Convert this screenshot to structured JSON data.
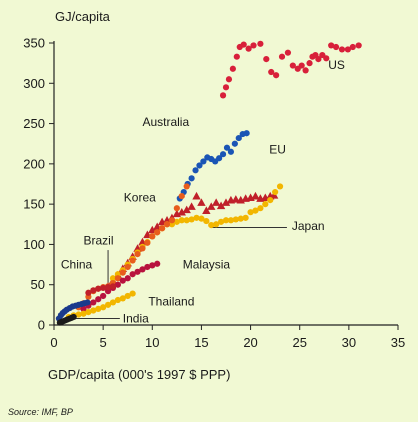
{
  "chart_data": {
    "type": "scatter",
    "ylabel": "GJ/capita",
    "xlabel": "GDP/capita (000's 1997 $ PPP)",
    "source": "Source: IMF, BP",
    "xlim": [
      0,
      35
    ],
    "ylim": [
      0,
      350
    ],
    "xticks": [
      0,
      5,
      10,
      15,
      20,
      25,
      30,
      35
    ],
    "yticks": [
      0,
      50,
      100,
      150,
      200,
      250,
      300,
      350
    ],
    "grid": false,
    "series": [
      {
        "name": "US",
        "color": "#d8203a",
        "marker": "circle",
        "x": [
          17.2,
          17.5,
          17.8,
          18.2,
          18.6,
          18.9,
          19.3,
          19.8,
          20.3,
          21.0,
          21.6,
          22.1,
          22.6,
          23.2,
          23.8,
          24.3,
          24.8,
          25.2,
          25.6,
          26.0,
          26.3,
          26.6,
          26.9,
          27.3,
          27.7,
          28.2,
          28.7,
          29.3,
          29.9,
          30.4,
          31.0
        ],
        "y": [
          285,
          295,
          305,
          318,
          333,
          345,
          348,
          343,
          347,
          349,
          330,
          314,
          310,
          333,
          338,
          322,
          318,
          322,
          316,
          325,
          333,
          335,
          330,
          335,
          331,
          347,
          345,
          342,
          342,
          345,
          347
        ]
      },
      {
        "name": "Australia",
        "color": "#1a55b5",
        "marker": "circle",
        "x": [
          12.8,
          13.2,
          13.6,
          14.0,
          14.4,
          14.8,
          15.2,
          15.6,
          16.0,
          16.4,
          16.8,
          17.2,
          17.6,
          18.0,
          18.4,
          18.8,
          19.2,
          19.6
        ],
        "y": [
          157,
          165,
          175,
          182,
          192,
          198,
          203,
          208,
          206,
          203,
          207,
          212,
          220,
          215,
          225,
          232,
          237,
          238
        ]
      },
      {
        "name": "EU",
        "color": "#c0202a",
        "marker": "triangle",
        "x": [
          5.5,
          6.0,
          6.5,
          7.0,
          7.5,
          8.0,
          8.5,
          9.0,
          9.5,
          10.0,
          10.5,
          11.0,
          11.5,
          12.0,
          12.5,
          13.0,
          13.5,
          14.0,
          14.5,
          15.0,
          15.5,
          16.0,
          16.5,
          17.0,
          17.5,
          18.0,
          18.5,
          19.0,
          19.5,
          20.0,
          20.5,
          21.0,
          21.5,
          22.0,
          22.4
        ],
        "y": [
          48,
          55,
          62,
          70,
          77,
          85,
          95,
          103,
          112,
          118,
          122,
          128,
          130,
          133,
          138,
          140,
          143,
          147,
          160,
          152,
          142,
          147,
          152,
          148,
          152,
          155,
          156,
          155,
          157,
          158,
          160,
          157,
          158,
          160,
          161
        ]
      },
      {
        "name": "Japan",
        "color": "#f2b600",
        "marker": "circle",
        "x": [
          6.0,
          6.5,
          7.0,
          7.5,
          8.0,
          8.5,
          9.0,
          9.5,
          10.0,
          10.5,
          11.0,
          11.5,
          12.0,
          12.5,
          13.0,
          13.5,
          14.0,
          14.5,
          15.0,
          15.5,
          16.0,
          16.5,
          17.0,
          17.5,
          18.0,
          18.5,
          19.0,
          19.5,
          20.0,
          20.5,
          21.0,
          21.5,
          22.0,
          22.5,
          23.0
        ],
        "y": [
          58,
          63,
          68,
          75,
          82,
          90,
          97,
          103,
          110,
          115,
          120,
          125,
          125,
          128,
          130,
          130,
          131,
          133,
          132,
          129,
          124,
          125,
          128,
          130,
          130,
          131,
          132,
          133,
          140,
          142,
          145,
          150,
          155,
          165,
          172
        ]
      },
      {
        "name": "Korea",
        "color": "#e85d1c",
        "marker": "circle",
        "x": [
          2.5,
          3.0,
          3.5,
          4.0,
          4.5,
          5.0,
          5.5,
          6.0,
          6.5,
          7.0,
          7.5,
          8.0,
          8.5,
          9.0,
          9.5,
          10.0,
          10.5,
          11.0,
          11.5,
          12.0,
          12.5,
          13.0,
          13.5
        ],
        "y": [
          22,
          27,
          35,
          42,
          45,
          47,
          48,
          52,
          58,
          65,
          72,
          80,
          88,
          95,
          102,
          110,
          115,
          120,
          125,
          130,
          145,
          160,
          172
        ]
      },
      {
        "name": "Malaysia",
        "color": "#b8123e",
        "marker": "circle",
        "x": [
          3.0,
          3.5,
          4.0,
          4.5,
          5.0,
          5.5,
          6.0,
          6.5,
          7.0,
          7.5,
          8.0,
          8.5,
          9.0,
          9.5,
          10.0,
          10.5
        ],
        "y": [
          20,
          24,
          28,
          32,
          36,
          42,
          46,
          50,
          55,
          58,
          63,
          66,
          69,
          72,
          74,
          76
        ]
      },
      {
        "name": "China",
        "color": "#1a3a8c",
        "marker": "circle",
        "x": [
          0.5,
          0.7,
          0.9,
          1.1,
          1.3,
          1.6,
          1.9,
          2.2,
          2.5,
          2.8,
          3.1,
          3.4
        ],
        "y": [
          8,
          12,
          15,
          17,
          19,
          21,
          23,
          24,
          25,
          26,
          27,
          28
        ]
      },
      {
        "name": "Brazil",
        "color": "#c0202a",
        "marker": "circle",
        "x": [
          3.5,
          4.0,
          4.5,
          5.0,
          5.5,
          6.0
        ],
        "y": [
          40,
          43,
          45,
          46,
          47,
          48
        ]
      },
      {
        "name": "Thailand",
        "color": "#f2b600",
        "marker": "circle",
        "x": [
          1.5,
          2.0,
          2.5,
          3.0,
          3.5,
          4.0,
          4.5,
          5.0,
          5.5,
          6.0,
          6.5,
          7.0,
          7.5,
          8.0
        ],
        "y": [
          10,
          12,
          13,
          14,
          16,
          18,
          20,
          22,
          25,
          28,
          31,
          33,
          36,
          39
        ]
      },
      {
        "name": "India",
        "color": "#1a1a1a",
        "marker": "circle",
        "x": [
          0.6,
          0.8,
          1.0,
          1.2,
          1.4,
          1.6,
          1.8,
          2.0
        ],
        "y": [
          3,
          4,
          5,
          6,
          7,
          8,
          9,
          10
        ]
      }
    ],
    "labels": [
      {
        "text": "US",
        "x": 27.9,
        "y": 318
      },
      {
        "text": "Australia",
        "x": 9.0,
        "y": 247
      },
      {
        "text": "EU",
        "x": 21.9,
        "y": 213
      },
      {
        "text": "Korea",
        "x": 7.1,
        "y": 153
      },
      {
        "text": "Japan",
        "x": 24.2,
        "y": 118
      },
      {
        "text": "Brazil",
        "x": 3.0,
        "y": 100
      },
      {
        "text": "China",
        "x": 0.7,
        "y": 70
      },
      {
        "text": "Malaysia",
        "x": 13.1,
        "y": 70
      },
      {
        "text": "Thailand",
        "x": 9.6,
        "y": 24
      },
      {
        "text": "India",
        "x": 7.0,
        "y": 3
      }
    ],
    "leaders": [
      {
        "label": "Japan",
        "x1": 23.7,
        "y1": 121,
        "x2": 15.9,
        "y2": 121
      },
      {
        "label": "Brazil",
        "x1": 5.5,
        "y1": 93,
        "x2": 5.5,
        "y2": 48
      },
      {
        "label": "India",
        "x1": 6.7,
        "y1": 8,
        "x2": 1.6,
        "y2": 8
      }
    ]
  }
}
